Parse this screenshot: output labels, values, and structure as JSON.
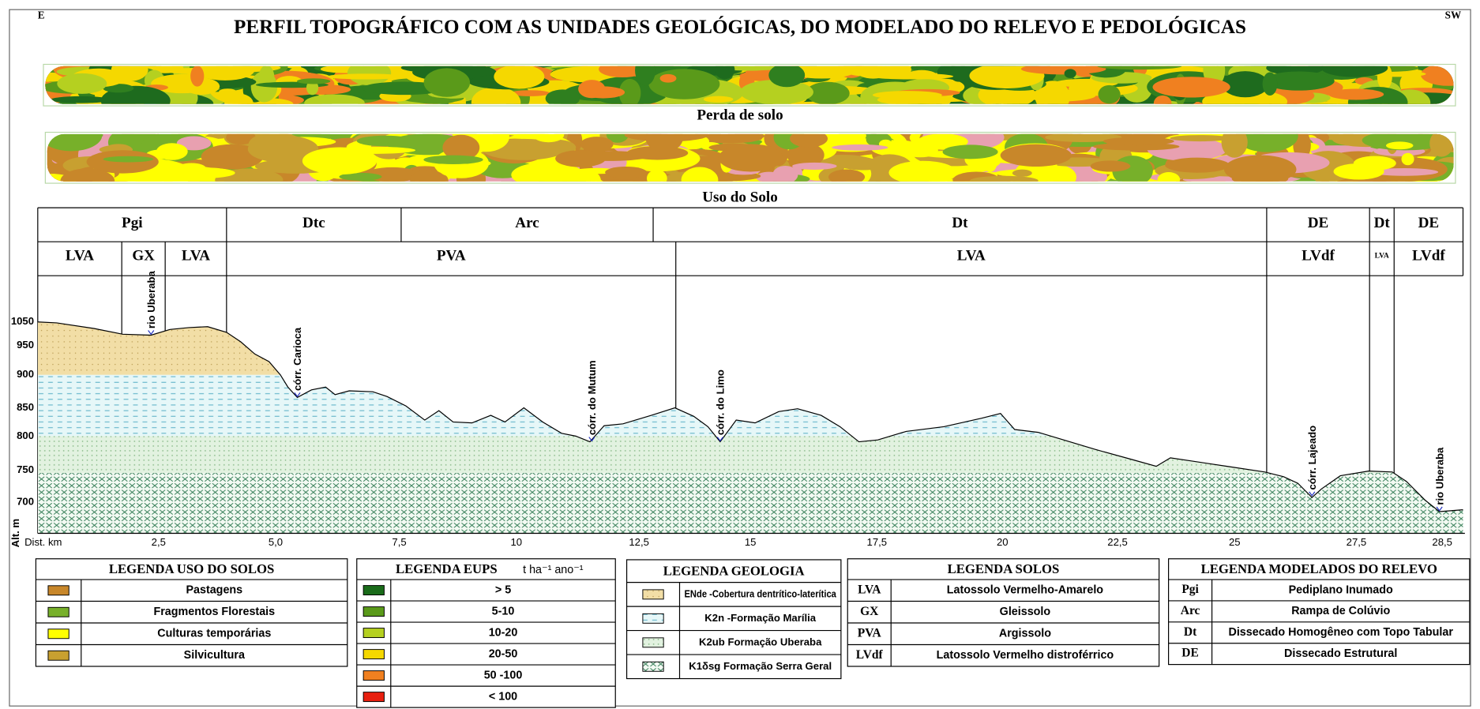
{
  "title": "PERFIL  TOPOGRÁFICO COM AS UNIDADES GEOLÓGICAS, DO MODELADO DO RELEVO E PEDOLÓGICAS",
  "corners": {
    "left": "E",
    "right": "SW"
  },
  "maps": [
    "Perda de solo",
    "Uso do Solo"
  ],
  "relief": [
    "Pgi",
    "Dtc",
    "Arc",
    "Dt",
    "DE",
    "Dt",
    "DE"
  ],
  "soils": [
    "LVA",
    "GX",
    "LVA",
    "PVA",
    "LVA",
    "LVdf",
    "LVA",
    "LVdf"
  ],
  "profile": {
    "y_label": "Alt. m",
    "x_label": "Dist. km",
    "yticks": [
      1050,
      950,
      900,
      850,
      800,
      750,
      700
    ],
    "xticks": [
      "2,5",
      "5,0",
      "7,5",
      "10",
      "12,5",
      "15",
      "17,5",
      "20",
      "22,5",
      "25",
      "27,5",
      "28,5"
    ],
    "rivers": [
      "rio Uberaba",
      "córr. Carioca",
      "córr. do Mutum",
      "córr. do Limo",
      "córr. Lajeado",
      "rio Uberaba"
    ]
  },
  "legends": [
    {
      "title": "LEGENDA  USO  DO SOLOS",
      "items": [
        {
          "color": "#c8872a",
          "label": "Pastagens"
        },
        {
          "color": "#77b02a",
          "label": "Fragmentos Florestais"
        },
        {
          "color": "#ffff00",
          "label": "Culturas temporárias"
        },
        {
          "color": "#c8a030",
          "label": "Silvicultura"
        }
      ]
    },
    {
      "title": "LEGENDA   EUPS",
      "unit": "t ha⁻¹ ano⁻¹",
      "items": [
        {
          "color": "#1a6b1a",
          "label": "> 5"
        },
        {
          "color": "#5a9a1a",
          "label": "5-10"
        },
        {
          "color": "#b5d020",
          "label": "10-20"
        },
        {
          "color": "#f5d800",
          "label": "20-50"
        },
        {
          "color": "#f08020",
          "label": "50 -100"
        },
        {
          "color": "#e82010",
          "label": "< 100"
        }
      ]
    },
    {
      "title": "LEGENDA GEOLOGIA",
      "items": [
        {
          "label": "ENde -Cobertura dentrítico-laterítica"
        },
        {
          "label": "K2n -Formação Marília"
        },
        {
          "label": "K2ub Formação Uberaba"
        },
        {
          "label": "K1δsg Formação Serra Geral"
        }
      ]
    },
    {
      "title": "LEGENDA SOLOS",
      "items": [
        {
          "code": "LVA",
          "label": "Latossolo Vermelho-Amarelo"
        },
        {
          "code": "GX",
          "label": "Gleissolo"
        },
        {
          "code": "PVA",
          "label": "Argissolo"
        },
        {
          "code": "LVdf",
          "label": "Latossolo Vermelho distroférrico"
        }
      ]
    },
    {
      "title": "LEGENDA MODELADOS DO RELEVO",
      "items": [
        {
          "code": "Pgi",
          "label": "Pediplano Inumado"
        },
        {
          "code": "Arc",
          "label": "Rampa de Colúvio"
        },
        {
          "code": "Dt",
          "label": "Dissecado Homogêneo com Topo  Tabular"
        },
        {
          "code": "DE",
          "label": "Dissecado  Estrutural"
        }
      ]
    }
  ]
}
